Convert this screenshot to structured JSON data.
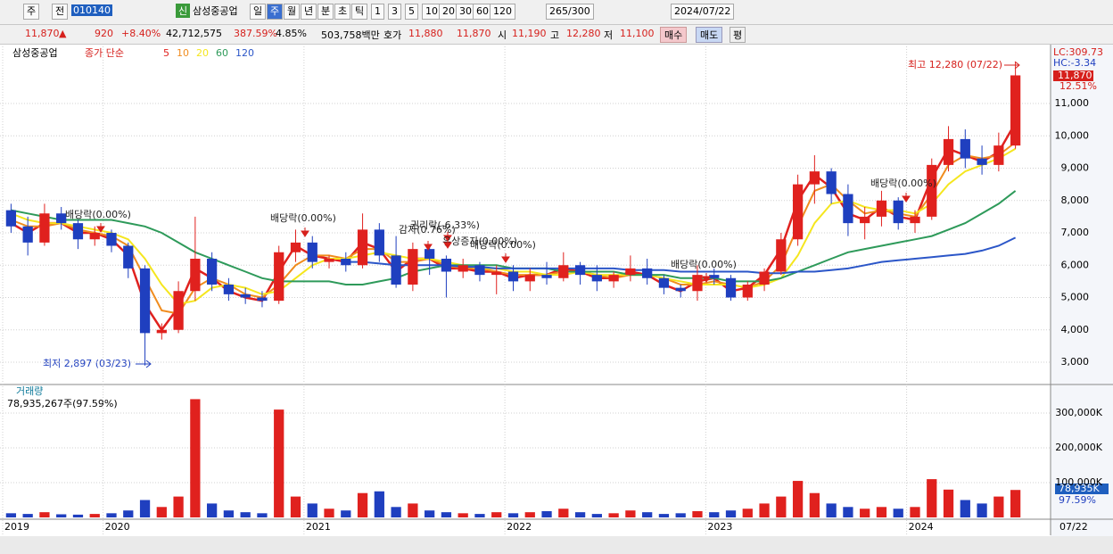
{
  "toolbar": {
    "market": "주",
    "mode": "전",
    "code": "010140",
    "new": "신",
    "name": "삼성중공업",
    "periods": [
      "일",
      "주",
      "월",
      "년",
      "분",
      "초",
      "틱"
    ],
    "intervals": [
      "1",
      "3",
      "5",
      "10",
      "20",
      "30",
      "60",
      "120"
    ],
    "count": "265/300",
    "date": "2024/07/22"
  },
  "quote": {
    "price": "11,870",
    "arrow": "▲",
    "change": "920",
    "change_pct": "+8.40%",
    "volume": "42,712,575",
    "volume_ratio": "387.59%",
    "turnover": "4.85%",
    "amount": "503,758백만",
    "ask_label": "호가",
    "ask": "11,880",
    "bid": "11,870",
    "open_label": "시",
    "open": "11,190",
    "high_label": "고",
    "high": "12,280",
    "low_label": "저",
    "low": "11,100",
    "buy": "매수",
    "sell": "매도",
    "avg": "평"
  },
  "chart_data": [
    {
      "type": "candlestick",
      "title": "삼성중공업",
      "legend_title": "종가 단순",
      "up_color": "#e0211e",
      "down_color": "#1f3fbf",
      "grid": true,
      "open": [
        7700,
        7200,
        6700,
        7600,
        7300,
        6800,
        7000,
        6600,
        5900,
        3900,
        4000,
        5200,
        6200,
        5400,
        5100,
        5000,
        4900,
        6400,
        6700,
        6100,
        6200,
        6000,
        7100,
        6300,
        5400,
        6500,
        6200,
        5800,
        6000,
        5700,
        5800,
        5500,
        5700,
        5600,
        6000,
        5700,
        5500,
        5700,
        5900,
        5600,
        5300,
        5200,
        5700,
        5600,
        5000,
        5400,
        5800,
        6800,
        8500,
        8900,
        8200,
        7300,
        7500,
        8000,
        7300,
        7500,
        9100,
        9900,
        9300,
        9100,
        9700
      ],
      "high": [
        7900,
        7500,
        7900,
        7800,
        7400,
        7200,
        7100,
        6700,
        6000,
        4200,
        5500,
        7500,
        6400,
        5600,
        5300,
        5200,
        6600,
        7100,
        6900,
        6300,
        6400,
        7600,
        7300,
        6900,
        6700,
        6600,
        6300,
        6200,
        6100,
        6000,
        6000,
        5900,
        6100,
        6400,
        6100,
        6000,
        5800,
        6300,
        6200,
        5700,
        5400,
        6000,
        5900,
        5700,
        5500,
        5900,
        7000,
        8800,
        9400,
        9000,
        8500,
        7800,
        8300,
        8100,
        7700,
        9300,
        10300,
        10200,
        9700,
        10100,
        12280
      ],
      "low": [
        7000,
        6300,
        6600,
        7100,
        6500,
        6600,
        6400,
        5600,
        2897,
        3700,
        3900,
        4900,
        5200,
        4900,
        4800,
        4700,
        4800,
        6100,
        5900,
        5900,
        5800,
        5900,
        6100,
        5300,
        5200,
        5700,
        5000,
        5600,
        5500,
        5100,
        5200,
        5200,
        5400,
        5500,
        5400,
        5200,
        5300,
        5500,
        5400,
        5100,
        5000,
        4900,
        5400,
        4900,
        4900,
        5200,
        5700,
        6600,
        7900,
        7900,
        6900,
        6800,
        7200,
        7100,
        7000,
        7400,
        8900,
        9000,
        8800,
        8900,
        9600
      ],
      "close": [
        7200,
        6700,
        7600,
        7300,
        6800,
        7000,
        6600,
        5900,
        3900,
        4000,
        5200,
        6200,
        5400,
        5100,
        5000,
        4900,
        6400,
        6700,
        6100,
        6200,
        6000,
        7100,
        6300,
        5400,
        6500,
        6200,
        5800,
        6000,
        5700,
        5800,
        5500,
        5700,
        5600,
        6000,
        5700,
        5500,
        5700,
        5900,
        5600,
        5300,
        5200,
        5700,
        5600,
        5000,
        5400,
        5800,
        6800,
        8500,
        8900,
        8200,
        7300,
        7500,
        8000,
        7300,
        7500,
        9100,
        9900,
        9300,
        9100,
        9700,
        11870
      ],
      "series": [
        {
          "name": "5",
          "color": "#e0211e",
          "values": [
            7300,
            7000,
            7300,
            7300,
            7000,
            7000,
            6800,
            6300,
            4800,
            4000,
            4700,
            5900,
            5600,
            5200,
            5000,
            4900,
            5800,
            6600,
            6300,
            6200,
            6100,
            6700,
            6500,
            5800,
            6200,
            6200,
            5900,
            5900,
            5800,
            5800,
            5600,
            5700,
            5700,
            5900,
            5800,
            5600,
            5600,
            5800,
            5700,
            5400,
            5200,
            5500,
            5600,
            5200,
            5300,
            5700,
            6500,
            8000,
            8800,
            8400,
            7600,
            7400,
            7800,
            7500,
            7400,
            8700,
            9600,
            9400,
            9200,
            9500,
            10400
          ]
        },
        {
          "name": "10",
          "color": "#f08c1e",
          "values": [
            7400,
            7200,
            7200,
            7300,
            7100,
            7000,
            6900,
            6600,
            5600,
            4600,
            4500,
            5300,
            5600,
            5400,
            5100,
            5000,
            5400,
            6000,
            6300,
            6300,
            6200,
            6500,
            6500,
            6100,
            6100,
            6200,
            6000,
            5900,
            5900,
            5800,
            5700,
            5700,
            5700,
            5800,
            5800,
            5700,
            5600,
            5700,
            5700,
            5600,
            5400,
            5400,
            5500,
            5400,
            5300,
            5500,
            6000,
            7200,
            8300,
            8500,
            8000,
            7600,
            7700,
            7600,
            7500,
            8200,
            9100,
            9400,
            9300,
            9400,
            9800
          ]
        },
        {
          "name": "20",
          "color": "#f5e61e",
          "values": [
            7600,
            7400,
            7300,
            7300,
            7200,
            7100,
            7000,
            6800,
            6200,
            5400,
            4800,
            4900,
            5300,
            5400,
            5300,
            5100,
            5200,
            5600,
            6000,
            6200,
            6200,
            6300,
            6400,
            6300,
            6200,
            6200,
            6100,
            6000,
            5900,
            5900,
            5800,
            5800,
            5700,
            5700,
            5800,
            5700,
            5700,
            5700,
            5700,
            5600,
            5500,
            5400,
            5400,
            5400,
            5300,
            5400,
            5600,
            6300,
            7300,
            7900,
            8000,
            7800,
            7700,
            7700,
            7600,
            7900,
            8500,
            8900,
            9100,
            9300,
            9600
          ]
        },
        {
          "name": "60",
          "color": "#2e9a5a",
          "values": [
            7700,
            7600,
            7500,
            7400,
            7400,
            7400,
            7400,
            7300,
            7200,
            7000,
            6700,
            6400,
            6200,
            6000,
            5800,
            5600,
            5500,
            5500,
            5500,
            5500,
            5400,
            5400,
            5500,
            5600,
            5800,
            5900,
            6000,
            6000,
            6000,
            6000,
            5900,
            5900,
            5900,
            5800,
            5800,
            5800,
            5800,
            5700,
            5700,
            5700,
            5600,
            5600,
            5600,
            5500,
            5500,
            5500,
            5600,
            5800,
            6000,
            6200,
            6400,
            6500,
            6600,
            6700,
            6800,
            6900,
            7100,
            7300,
            7600,
            7900,
            8300
          ]
        },
        {
          "name": "120",
          "color": "#2b56c8",
          "values": [
            null,
            null,
            null,
            null,
            null,
            null,
            null,
            null,
            null,
            null,
            null,
            null,
            null,
            null,
            null,
            null,
            null,
            null,
            null,
            null,
            6100,
            6100,
            6050,
            6000,
            6000,
            6000,
            6000,
            5950,
            5950,
            5900,
            5900,
            5900,
            5900,
            5900,
            5900,
            5900,
            5900,
            5850,
            5850,
            5850,
            5800,
            5800,
            5800,
            5800,
            5800,
            5750,
            5750,
            5800,
            5800,
            5850,
            5900,
            6000,
            6100,
            6150,
            6200,
            6250,
            6300,
            6350,
            6450,
            6600,
            6850
          ]
        }
      ],
      "ylim": [
        2338,
        12766
      ],
      "yticks": [
        {
          "value": 3000,
          "label": "3,000"
        },
        {
          "value": 4000,
          "label": "4,000"
        },
        {
          "value": 5000,
          "label": "5,000"
        },
        {
          "value": 6000,
          "label": "6,000"
        },
        {
          "value": 7000,
          "label": "7,000"
        },
        {
          "value": 8000,
          "label": "8,000"
        },
        {
          "value": 9000,
          "label": "9,000"
        },
        {
          "value": 10000,
          "label": "10,000"
        },
        {
          "value": 11000,
          "label": "11,000"
        }
      ],
      "lc": "LC:309.73",
      "hc": "HC:-3.34",
      "last_label": "11,870",
      "last_pct": "12.51%",
      "high_label": "최고 12,280 (07/22)",
      "low_label": "최저 2,897 (03/23)",
      "annotations": [
        "배당락(0.00%)",
        "배당락(0.00%)",
        "감자(0.76%)",
        "권리락(-6.33%)",
        "유상증자(0.00%)",
        "배당락(0.00%)",
        "배당락(0.00%)",
        "배당락(0.00%)"
      ]
    },
    {
      "type": "bar",
      "title": "거래량",
      "subtitle": "78,935,267주(97.59%)",
      "categories": [
        "2019",
        null,
        null,
        null,
        null,
        null,
        "2020",
        null,
        null,
        null,
        null,
        null,
        null,
        null,
        null,
        null,
        null,
        null,
        "2021",
        null,
        null,
        null,
        null,
        null,
        null,
        null,
        null,
        null,
        null,
        null,
        "2022",
        null,
        null,
        null,
        null,
        null,
        null,
        null,
        null,
        null,
        null,
        null,
        "2023",
        null,
        null,
        null,
        null,
        null,
        null,
        null,
        null,
        null,
        null,
        null,
        "2024",
        null,
        null,
        null,
        null,
        null,
        null
      ],
      "values": [
        12000,
        10000,
        15000,
        9000,
        8000,
        10000,
        12000,
        20000,
        50000,
        30000,
        60000,
        340000,
        40000,
        20000,
        15000,
        12000,
        310000,
        60000,
        40000,
        25000,
        20000,
        70000,
        75000,
        30000,
        40000,
        20000,
        15000,
        12000,
        10000,
        15000,
        12000,
        15000,
        18000,
        25000,
        15000,
        10000,
        12000,
        20000,
        15000,
        10000,
        12000,
        18000,
        15000,
        20000,
        25000,
        40000,
        60000,
        105000,
        70000,
        40000,
        30000,
        25000,
        30000,
        25000,
        30000,
        110000,
        80000,
        50000,
        40000,
        60000,
        78935
      ],
      "ylim": [
        0,
        377000
      ],
      "yticks": [
        {
          "value": 100000,
          "label": "100,000K"
        },
        {
          "value": 200000,
          "label": "200,000K"
        },
        {
          "value": 300000,
          "label": "300,000K"
        }
      ],
      "last_label": "78,935K",
      "last_pct": "97.59%",
      "date_label": "07/22"
    }
  ]
}
